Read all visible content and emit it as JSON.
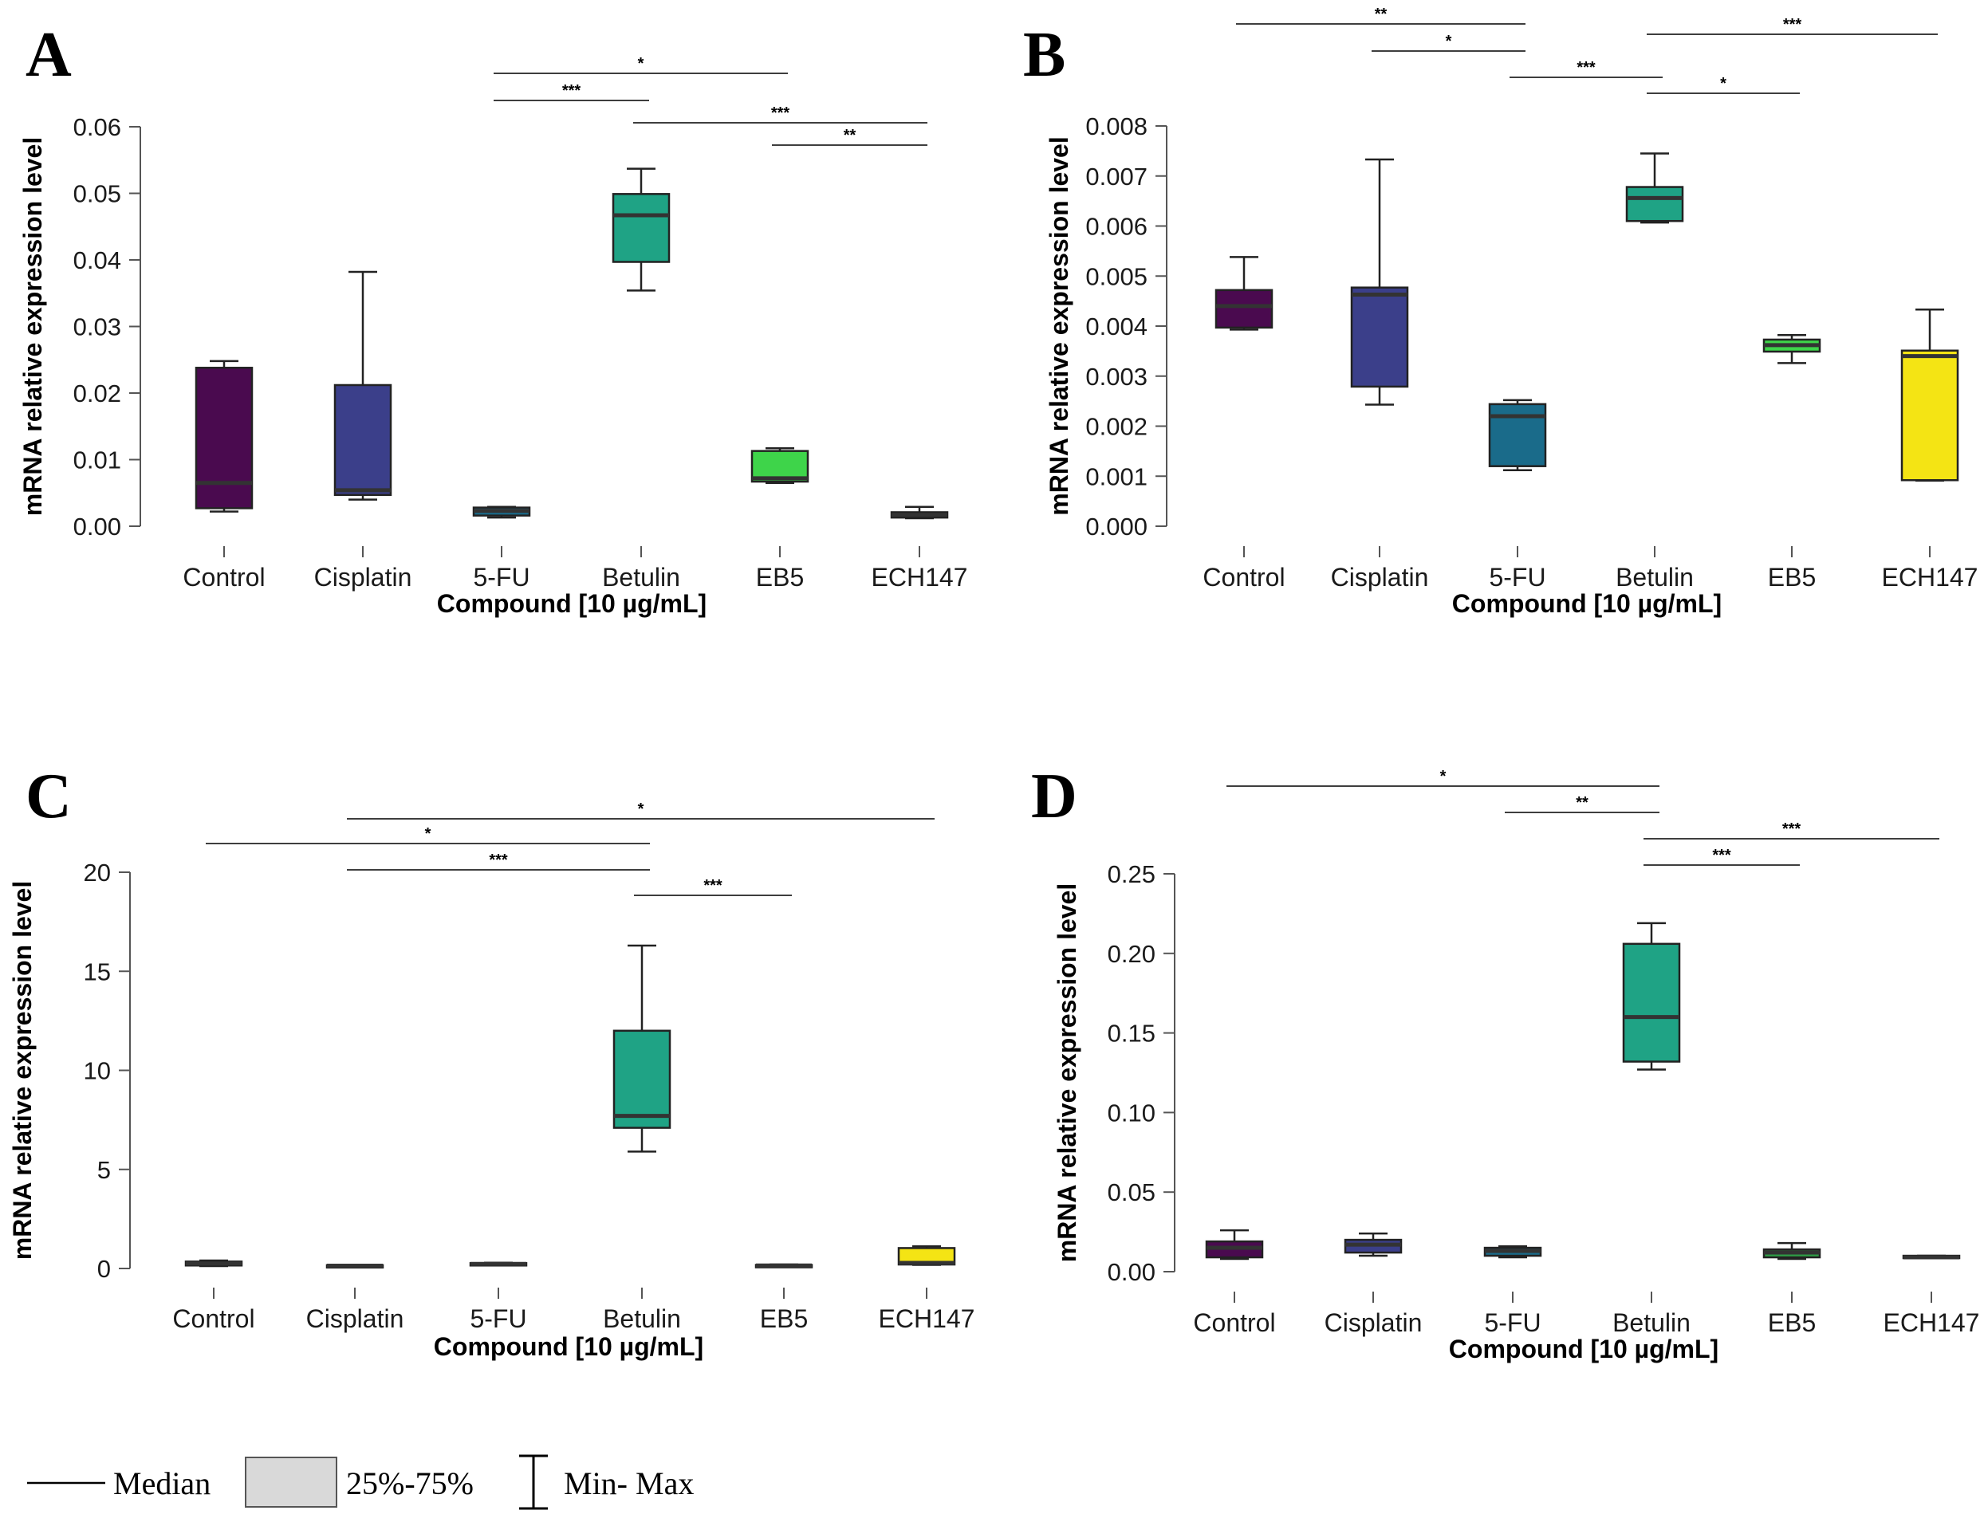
{
  "legend": {
    "median_label": "Median",
    "iqr_label": "25%-75%",
    "range_label": "Min- Max"
  },
  "colors": {
    "Control": "#4a0a4f",
    "Cisplatin": "#3b3f8a",
    "5-FU": "#1a6b8a",
    "Betulin": "#1fa385",
    "EB5": "#3ed44a",
    "EB5_D": "#2e9c45",
    "ECH147": "#f4e414"
  },
  "chart_data": [
    {
      "panel": "A",
      "type": "box",
      "title": "",
      "xlabel": "Compound [10 µg/mL]",
      "ylabel": "mRNA relative expression level",
      "categories": [
        "Control",
        "Cisplatin",
        "5-FU",
        "Betulin",
        "EB5",
        "ECH147"
      ],
      "ylim": [
        0,
        0.06
      ],
      "yticks": [
        0.0,
        0.01,
        0.02,
        0.03,
        0.04,
        0.05,
        0.06
      ],
      "ytick_labels": [
        "0.00",
        "0.01",
        "0.02",
        "0.03",
        "0.04",
        "0.05",
        "0.06"
      ],
      "boxes": [
        {
          "category": "Control",
          "min": 0.0022,
          "q1": 0.0027,
          "median": 0.0065,
          "q3": 0.0238,
          "max": 0.0248
        },
        {
          "category": "Cisplatin",
          "min": 0.004,
          "q1": 0.0047,
          "median": 0.0054,
          "q3": 0.0212,
          "max": 0.0382
        },
        {
          "category": "5-FU",
          "min": 0.0013,
          "q1": 0.0016,
          "median": 0.0023,
          "q3": 0.0028,
          "max": 0.0029
        },
        {
          "category": "Betulin",
          "min": 0.0354,
          "q1": 0.0397,
          "median": 0.0467,
          "q3": 0.0499,
          "max": 0.0537
        },
        {
          "category": "EB5",
          "min": 0.0065,
          "q1": 0.0067,
          "median": 0.0072,
          "q3": 0.0113,
          "max": 0.0117
        },
        {
          "category": "ECH147",
          "min": 0.0012,
          "q1": 0.0013,
          "median": 0.0017,
          "q3": 0.0021,
          "max": 0.0029
        }
      ],
      "significance": [
        {
          "from": "5-FU",
          "to": "EB5",
          "label": "*",
          "level": 1
        },
        {
          "from": "5-FU",
          "to": "Betulin",
          "label": "***",
          "level": 2
        },
        {
          "from": "Betulin",
          "to": "ECH147",
          "label": "***",
          "level": 3
        },
        {
          "from": "EB5",
          "to": "ECH147",
          "label": "**",
          "level": 4
        }
      ]
    },
    {
      "panel": "B",
      "type": "box",
      "title": "",
      "xlabel": "Compound [10 µg/mL]",
      "ylabel": "mRNA relative expression level",
      "categories": [
        "Control",
        "Cisplatin",
        "5-FU",
        "Betulin",
        "EB5",
        "ECH147"
      ],
      "ylim": [
        0,
        0.008
      ],
      "yticks": [
        0.0,
        0.001,
        0.002,
        0.003,
        0.004,
        0.005,
        0.006,
        0.007,
        0.008
      ],
      "ytick_labels": [
        "0.000",
        "0.001",
        "0.002",
        "0.003",
        "0.004",
        "0.005",
        "0.006",
        "0.007",
        "0.008"
      ],
      "boxes": [
        {
          "category": "Control",
          "min": 0.00393,
          "q1": 0.00397,
          "median": 0.0044,
          "q3": 0.00472,
          "max": 0.00538
        },
        {
          "category": "Cisplatin",
          "min": 0.00243,
          "q1": 0.00279,
          "median": 0.00463,
          "q3": 0.00477,
          "max": 0.00733
        },
        {
          "category": "5-FU",
          "min": 0.00112,
          "q1": 0.0012,
          "median": 0.0022,
          "q3": 0.00244,
          "max": 0.00252
        },
        {
          "category": "Betulin",
          "min": 0.00607,
          "q1": 0.0061,
          "median": 0.00656,
          "q3": 0.00678,
          "max": 0.00745
        },
        {
          "category": "EB5",
          "min": 0.00326,
          "q1": 0.00349,
          "median": 0.00362,
          "q3": 0.00373,
          "max": 0.00382
        },
        {
          "category": "ECH147",
          "min": 0.00091,
          "q1": 0.00092,
          "median": 0.0034,
          "q3": 0.00351,
          "max": 0.00433
        }
      ],
      "significance": [
        {
          "from": "Control",
          "to": "5-FU",
          "label": "**",
          "level": 1
        },
        {
          "from": "Betulin",
          "to": "ECH147",
          "label": "***",
          "level": 2
        },
        {
          "from": "Cisplatin",
          "to": "5-FU",
          "label": "*",
          "level": 3
        },
        {
          "from": "5-FU",
          "to": "Betulin",
          "label": "***",
          "level": 4
        },
        {
          "from": "Betulin",
          "to": "EB5",
          "label": "*",
          "level": 5
        }
      ]
    },
    {
      "panel": "C",
      "type": "box",
      "title": "",
      "xlabel": "Compound [10 µg/mL]",
      "ylabel": "mRNA relative expression level",
      "categories": [
        "Control",
        "Cisplatin",
        "5-FU",
        "Betulin",
        "EB5",
        "ECH147"
      ],
      "ylim": [
        0,
        20
      ],
      "yticks": [
        0,
        5,
        10,
        15,
        20
      ],
      "ytick_labels": [
        "0",
        "5",
        "10",
        "15",
        "20"
      ],
      "boxes": [
        {
          "category": "Control",
          "min": 0.12,
          "q1": 0.15,
          "median": 0.25,
          "q3": 0.35,
          "max": 0.4
        },
        {
          "category": "Cisplatin",
          "min": 0.08,
          "q1": 0.1,
          "median": 0.14,
          "q3": 0.17,
          "max": 0.19
        },
        {
          "category": "5-FU",
          "min": 0.17,
          "q1": 0.19,
          "median": 0.23,
          "q3": 0.27,
          "max": 0.29
        },
        {
          "category": "Betulin",
          "min": 5.9,
          "q1": 7.1,
          "median": 7.7,
          "q3": 12.0,
          "max": 16.3
        },
        {
          "category": "EB5",
          "min": 0.1,
          "q1": 0.12,
          "median": 0.15,
          "q3": 0.18,
          "max": 0.2
        },
        {
          "category": "ECH147",
          "min": 0.18,
          "q1": 0.2,
          "median": 0.28,
          "q3": 1.03,
          "max": 1.12
        }
      ],
      "significance": [
        {
          "from": "Cisplatin",
          "to": "ECH147",
          "label": "*",
          "level": 1
        },
        {
          "from": "Control",
          "to": "Betulin",
          "label": "*",
          "level": 2
        },
        {
          "from": "Cisplatin",
          "to": "Betulin",
          "label": "***",
          "level": 3
        },
        {
          "from": "Betulin",
          "to": "EB5",
          "label": "***",
          "level": 4
        }
      ]
    },
    {
      "panel": "D",
      "type": "box",
      "title": "",
      "xlabel": "Compound [10 µg/mL]",
      "ylabel": "mRNA relative expression level",
      "categories": [
        "Control",
        "Cisplatin",
        "5-FU",
        "Betulin",
        "EB5",
        "ECH147"
      ],
      "ylim": [
        0,
        0.25
      ],
      "yticks": [
        0.0,
        0.05,
        0.1,
        0.15,
        0.2,
        0.25
      ],
      "ytick_labels": [
        "0.00",
        "0.05",
        "0.10",
        "0.15",
        "0.20",
        "0.25"
      ],
      "boxes": [
        {
          "category": "Control",
          "min": 0.008,
          "q1": 0.009,
          "median": 0.015,
          "q3": 0.019,
          "max": 0.026
        },
        {
          "category": "Cisplatin",
          "min": 0.01,
          "q1": 0.012,
          "median": 0.017,
          "q3": 0.02,
          "max": 0.024
        },
        {
          "category": "5-FU",
          "min": 0.009,
          "q1": 0.01,
          "median": 0.013,
          "q3": 0.015,
          "max": 0.016
        },
        {
          "category": "Betulin",
          "min": 0.127,
          "q1": 0.132,
          "median": 0.16,
          "q3": 0.206,
          "max": 0.219
        },
        {
          "category": "EB5",
          "min": 0.008,
          "q1": 0.009,
          "median": 0.012,
          "q3": 0.014,
          "max": 0.018
        },
        {
          "category": "ECH147",
          "min": 0.009,
          "q1": 0.009,
          "median": 0.009,
          "q3": 0.01,
          "max": 0.01
        }
      ],
      "significance": [
        {
          "from": "Control",
          "to": "Betulin",
          "label": "*",
          "level": 1
        },
        {
          "from": "5-FU",
          "to": "Betulin",
          "label": "**",
          "level": 2
        },
        {
          "from": "Betulin",
          "to": "ECH147",
          "label": "***",
          "level": 3
        },
        {
          "from": "Betulin",
          "to": "EB5",
          "label": "***",
          "level": 4
        }
      ]
    }
  ]
}
